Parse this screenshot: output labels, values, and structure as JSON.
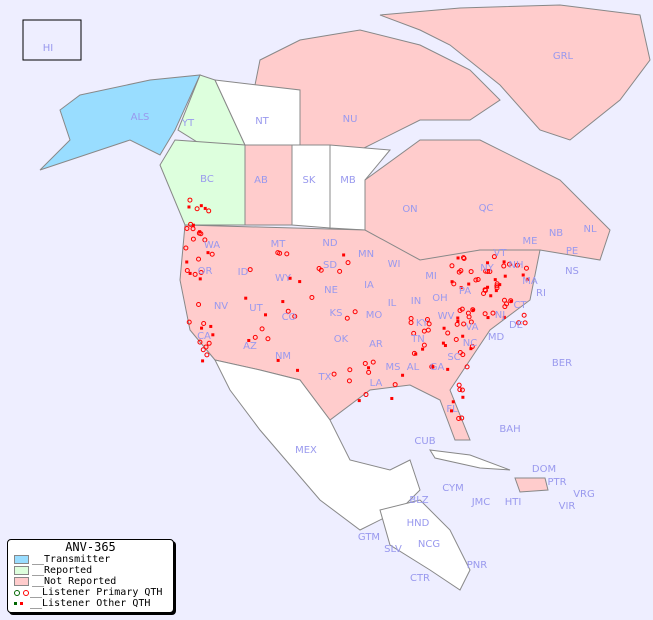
{
  "legend": {
    "title": "ANV-365",
    "items": [
      {
        "label": "__Transmitter",
        "color": "#99ddff"
      },
      {
        "label": "__Reported",
        "color": "#ddffdd"
      },
      {
        "label": "__Not Reported",
        "color": "#ffcccc"
      },
      {
        "label": "__Listener Primary QTH",
        "colors": [
          "#006600",
          "#ff0000"
        ]
      },
      {
        "label": "__Listener Other QTH",
        "colors": [
          "#006600",
          "#ff0000"
        ]
      }
    ]
  },
  "colors": {
    "background": "#eeeeff",
    "transmitter": "#99ddff",
    "reported": "#ddffdd",
    "not_reported": "#ffcccc",
    "no_data": "#ffffff",
    "marker": "#ff0000"
  },
  "regions": [
    "HI",
    "ALS",
    "YT",
    "NT",
    "NU",
    "GRL",
    "BC",
    "AB",
    "SK",
    "MB",
    "ON",
    "QC",
    "NL",
    "NB",
    "NS",
    "PE",
    "WA",
    "OR",
    "ID",
    "MT",
    "WY",
    "ND",
    "SD",
    "NE",
    "MN",
    "IA",
    "WI",
    "MI",
    "IL",
    "IN",
    "OH",
    "PA",
    "NY",
    "VT",
    "NH",
    "ME",
    "MA",
    "CT",
    "RI",
    "NJ",
    "DE",
    "MD",
    "WV",
    "VA",
    "KY",
    "TN",
    "NC",
    "SC",
    "GA",
    "AL",
    "MS",
    "LA",
    "AR",
    "MO",
    "KS",
    "OK",
    "TX",
    "NM",
    "CO",
    "UT",
    "AZ",
    "NV",
    "CA",
    "FL",
    "MEX",
    "CUB",
    "BAH",
    "BER",
    "DOM",
    "PTR",
    "VRG",
    "VIR",
    "HTI",
    "JMC",
    "CYM",
    "BLZ",
    "HND",
    "GTM",
    "SLV",
    "NCG",
    "CTR",
    "PNR"
  ]
}
